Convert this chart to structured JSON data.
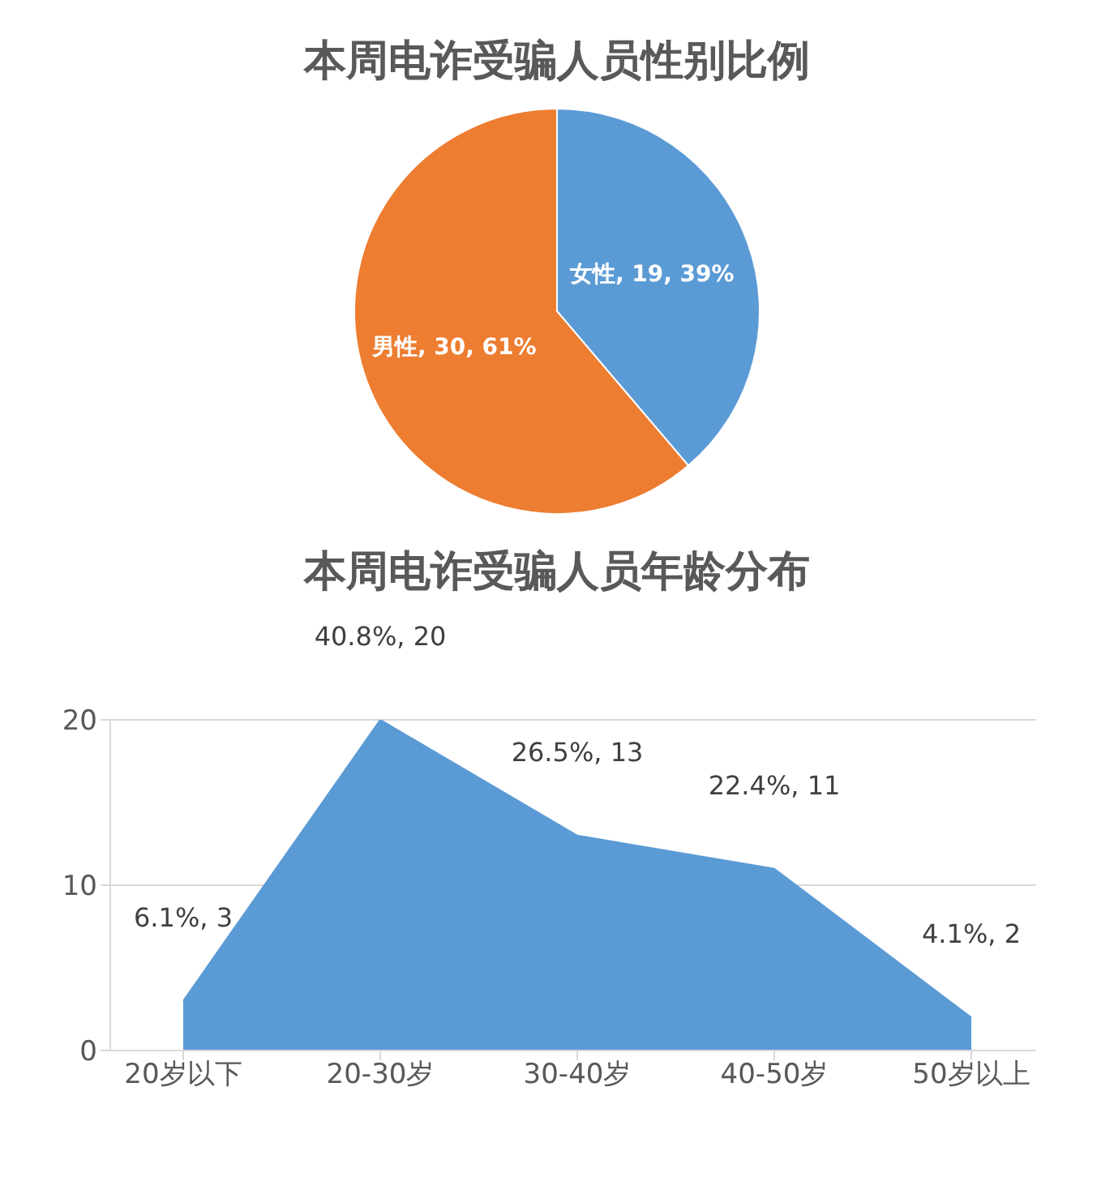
{
  "chart_data": [
    {
      "type": "pie",
      "title": "本周电诈受骗人员性别比例",
      "categories": [
        "女性",
        "男性"
      ],
      "values": [
        19,
        30
      ],
      "colors": [
        "#5b9bd5",
        "#ed7d31"
      ],
      "value_labels": [
        ", 19, 39%",
        ", 30, 61%"
      ]
    },
    {
      "type": "area",
      "title": "本周电诈受骗人员年龄分布",
      "categories": [
        "20岁以下",
        "20-30岁",
        "30-40岁",
        "40-50岁",
        "50岁以上"
      ],
      "values": [
        3,
        20,
        13,
        11,
        2
      ],
      "color": "#5b9bd5",
      "ylim": [
        0,
        20
      ],
      "yticks": [
        0,
        10,
        20
      ],
      "grid": "y",
      "value_labels": [
        "6.1%, 3",
        "40.8%, 20",
        "26.5%, 13",
        "22.4%, 11",
        "4.1%, 2"
      ]
    }
  ]
}
